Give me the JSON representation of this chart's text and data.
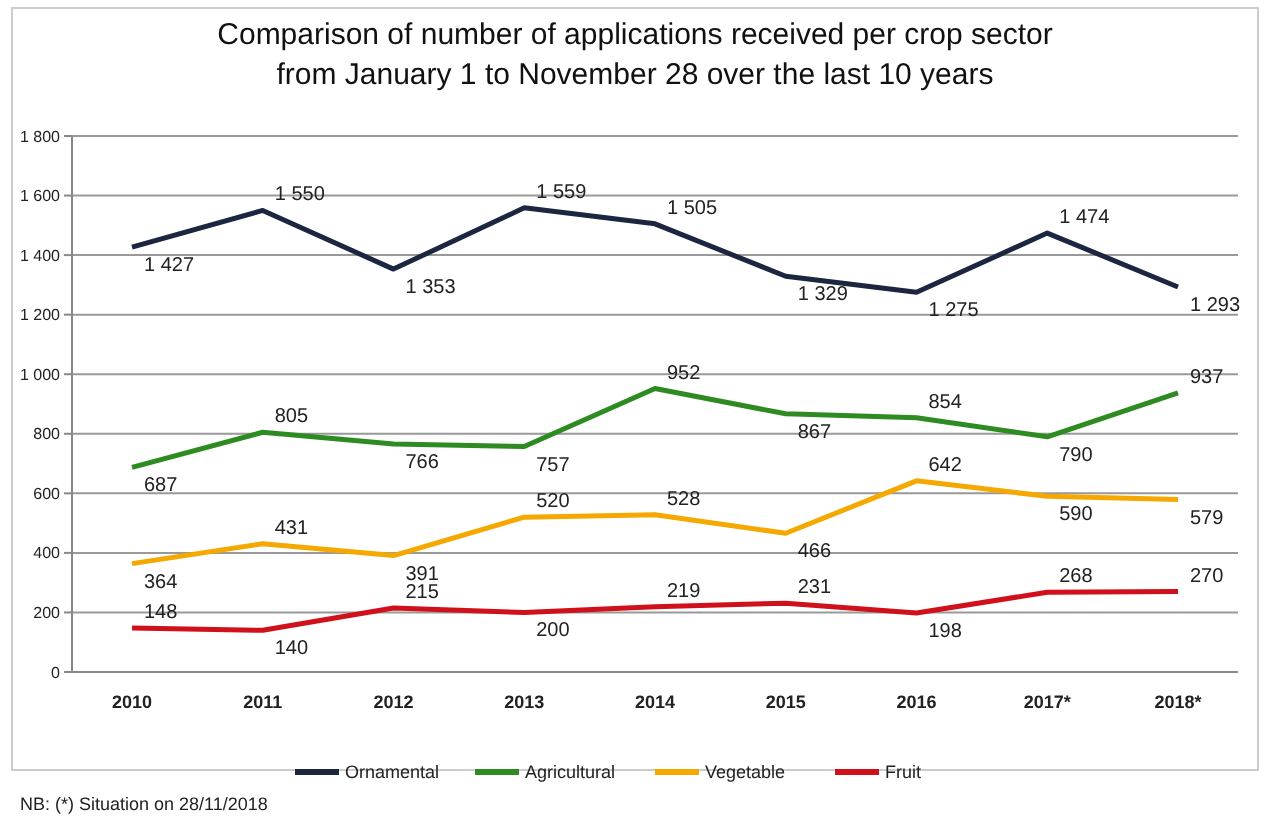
{
  "chart_data": {
    "type": "line",
    "title": "Comparison of number of applications received per crop sector",
    "subtitle": "from January 1 to November 28 over the last 10 years",
    "categories": [
      "2010",
      "2011",
      "2012",
      "2013",
      "2014",
      "2015",
      "2016",
      "2017*",
      "2018*"
    ],
    "series": [
      {
        "name": "Ornamental",
        "color": "#1c2640",
        "values": [
          1427,
          1550,
          1353,
          1559,
          1505,
          1329,
          1275,
          1474,
          1293
        ],
        "value_labels": [
          "1 427",
          "1 550",
          "1 353",
          "1 559",
          "1 505",
          "1 329",
          "1 275",
          "1 474",
          "1 293"
        ]
      },
      {
        "name": "Agricultural",
        "color": "#2e8b22",
        "values": [
          687,
          805,
          766,
          757,
          952,
          867,
          854,
          790,
          937
        ],
        "value_labels": [
          "687",
          "805",
          "766",
          "757",
          "952",
          "867",
          "854",
          "790",
          "937"
        ]
      },
      {
        "name": "Vegetable",
        "color": "#f5a800",
        "values": [
          364,
          431,
          391,
          520,
          528,
          466,
          642,
          590,
          579
        ],
        "value_labels": [
          "364",
          "431",
          "391",
          "520",
          "528",
          "466",
          "642",
          "590",
          "579"
        ]
      },
      {
        "name": "Fruit",
        "color": "#d0101a",
        "values": [
          148,
          140,
          215,
          200,
          219,
          231,
          198,
          268,
          270
        ],
        "value_labels": [
          "148",
          "140",
          "215",
          "200",
          "219",
          "231",
          "198",
          "268",
          "270"
        ]
      }
    ],
    "ylim": [
      0,
      1800
    ],
    "yticks": [
      0,
      200,
      400,
      600,
      800,
      {
        "value": 1000,
        "label": "1 000"
      },
      {
        "value": 1200,
        "label": "1 200"
      },
      {
        "value": 1400,
        "label": "1 400"
      },
      {
        "value": 1600,
        "label": "1 600"
      },
      {
        "value": 1800,
        "label": "1 800"
      }
    ],
    "grid": "y",
    "legend": "bottom",
    "marker": "none",
    "line_style": "solid",
    "annotations": [
      "NB: (*) Situation on 28/11/2018"
    ]
  }
}
